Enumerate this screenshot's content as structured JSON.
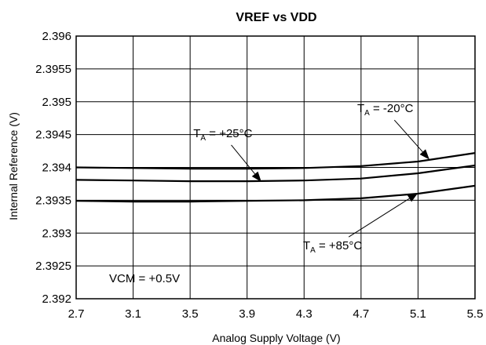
{
  "chart_data": {
    "type": "line",
    "title": "VREF vs VDD",
    "xlabel": "Analog Supply Voltage (V)",
    "ylabel": "Internal Reference (V)",
    "xlim": [
      2.7,
      5.5
    ],
    "ylim": [
      2.392,
      2.396
    ],
    "xticks": [
      "2.7",
      "3.1",
      "3.5",
      "3.9",
      "4.3",
      "4.7",
      "5.1",
      "5.5"
    ],
    "yticks": [
      "2.392",
      "2.3925",
      "2.393",
      "2.3935",
      "2.394",
      "2.3945",
      "2.395",
      "2.3955",
      "2.396"
    ],
    "grid": true,
    "series": [
      {
        "x": [
          2.7,
          3.1,
          3.5,
          3.9,
          4.3,
          4.7,
          5.1,
          5.5
        ],
        "y": [
          2.394,
          2.39399,
          2.39398,
          2.39398,
          2.39399,
          2.39402,
          2.39409,
          2.39422
        ]
      },
      {
        "x": [
          2.7,
          3.1,
          3.5,
          3.9,
          4.3,
          4.7,
          5.1,
          5.5
        ],
        "y": [
          2.39381,
          2.3938,
          2.39379,
          2.39379,
          2.3938,
          2.39383,
          2.39391,
          2.39403
        ]
      },
      {
        "x": [
          2.7,
          3.1,
          3.5,
          3.9,
          4.3,
          4.7,
          5.1,
          5.5
        ],
        "y": [
          2.39349,
          2.39348,
          2.39348,
          2.39349,
          2.3935,
          2.39353,
          2.3936,
          2.39372
        ]
      }
    ],
    "annotations": [
      {
        "main": "T",
        "sub": "A",
        "rest": " = +25°C",
        "x": 3.73,
        "y": 2.39446,
        "arrow_to": [
          4.0,
          2.39378
        ]
      },
      {
        "main": "T",
        "sub": "A",
        "rest": " = -20°C",
        "x": 4.87,
        "y": 2.39484,
        "arrow_to": [
          5.18,
          2.39412
        ]
      },
      {
        "main": "T",
        "sub": "A",
        "rest": " = +85°C",
        "x": 4.5,
        "y": 2.39275,
        "arrow_to": [
          5.1,
          2.39361
        ]
      },
      {
        "main": "VCM = +0.5V",
        "x": 3.18,
        "y": 2.39225
      }
    ]
  }
}
